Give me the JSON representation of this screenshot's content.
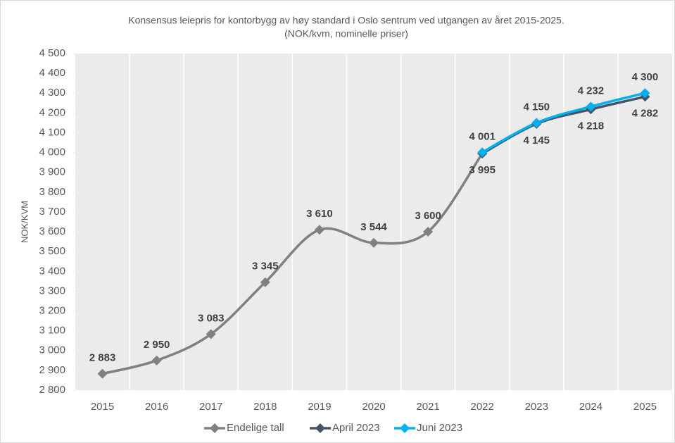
{
  "chart_data": {
    "type": "line",
    "title": "Konsensus leiepris for kontorbygg av høy standard i Oslo sentrum ved utgangen av året 2015-2025.",
    "subtitle": "(NOK/kvm, nominelle priser)",
    "y_label": "NOK/KVM",
    "categories": [
      "2015",
      "2016",
      "2017",
      "2018",
      "2019",
      "2020",
      "2021",
      "2022",
      "2023",
      "2024",
      "2025"
    ],
    "series": [
      {
        "name": "Endelige tall",
        "color": "#808080",
        "label_side": "above",
        "values": [
          2883,
          2950,
          3083,
          3345,
          3610,
          3544,
          3600,
          3995,
          null,
          null,
          null
        ],
        "value_labels": [
          "2 883",
          "2 950",
          "3 083",
          "3 345",
          "3 610",
          "3 544",
          "3 600",
          null,
          null,
          null,
          null
        ]
      },
      {
        "name": "April 2023",
        "color": "#44546a",
        "label_side": "below",
        "values": [
          null,
          null,
          null,
          null,
          null,
          null,
          null,
          3995,
          4145,
          4218,
          4282
        ],
        "value_labels": [
          null,
          null,
          null,
          null,
          null,
          null,
          null,
          "3 995",
          "4 145",
          "4 218",
          "4 282"
        ]
      },
      {
        "name": "Juni 2023",
        "color": "#00b0f0",
        "label_side": "above",
        "values": [
          null,
          null,
          null,
          null,
          null,
          null,
          null,
          4001,
          4150,
          4232,
          4300
        ],
        "value_labels": [
          null,
          null,
          null,
          null,
          null,
          null,
          null,
          "4 001",
          "4 150",
          "4 232",
          "4 300"
        ]
      }
    ],
    "ylim": [
      2800,
      4500
    ],
    "yticks": [
      {
        "value": 2800,
        "label": "2 800"
      },
      {
        "value": 2900,
        "label": "2 900"
      },
      {
        "value": 3000,
        "label": "3 000"
      },
      {
        "value": 3100,
        "label": "3 100"
      },
      {
        "value": 3200,
        "label": "3 200"
      },
      {
        "value": 3300,
        "label": "3 300"
      },
      {
        "value": 3400,
        "label": "3 400"
      },
      {
        "value": 3500,
        "label": "3 500"
      },
      {
        "value": 3600,
        "label": "3 600"
      },
      {
        "value": 3700,
        "label": "3 700"
      },
      {
        "value": 3800,
        "label": "3 800"
      },
      {
        "value": 3900,
        "label": "3 900"
      },
      {
        "value": 4000,
        "label": "4 000"
      },
      {
        "value": 4100,
        "label": "4 100"
      },
      {
        "value": 4200,
        "label": "4 200"
      },
      {
        "value": 4300,
        "label": "4 300"
      },
      {
        "value": 4400,
        "label": "4 400"
      },
      {
        "value": 4500,
        "label": "4 500"
      }
    ],
    "legend": "bottom"
  }
}
